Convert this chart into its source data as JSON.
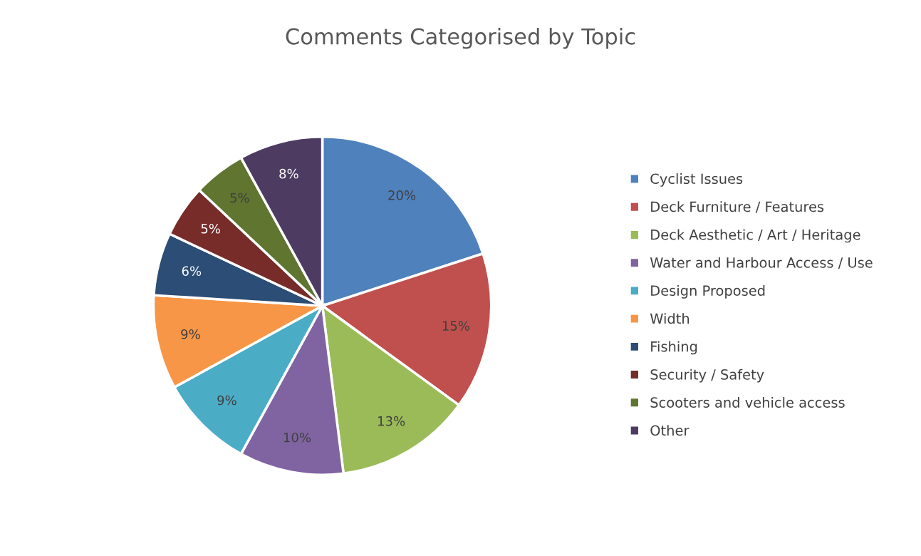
{
  "chart_data": {
    "type": "pie",
    "title": "Comments Categorised by Topic",
    "categories": [
      "Cyclist Issues",
      "Deck Furniture / Features",
      "Deck Aesthetic / Art / Heritage",
      "Water and Harbour Access / Use",
      "Design Proposed",
      "Width",
      "Fishing",
      "Security / Safety",
      "Scooters and vehicle access",
      "Other"
    ],
    "values": [
      20,
      15,
      13,
      10,
      9,
      9,
      6,
      5,
      5,
      8
    ],
    "colors": [
      "#4f81bd",
      "#c0504d",
      "#9bbb59",
      "#8064a2",
      "#4bacc6",
      "#f79646",
      "#2c4d75",
      "#772c2a",
      "#5f7530",
      "#4d3b62"
    ],
    "value_labels": [
      "20%",
      "15%",
      "13%",
      "10%",
      "9%",
      "9%",
      "6%",
      "5%",
      "5%",
      "8%"
    ],
    "legend": "right"
  }
}
